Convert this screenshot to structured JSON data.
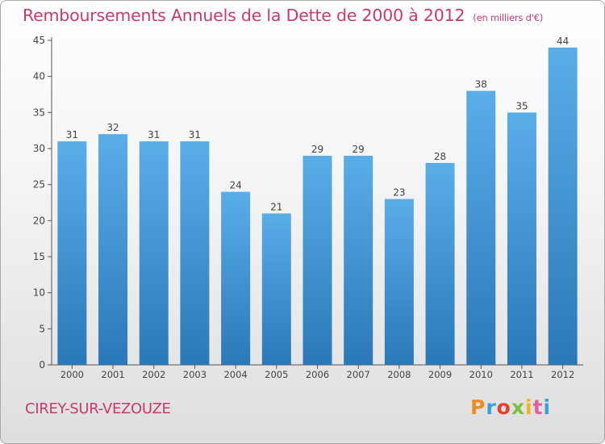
{
  "header": {
    "title": "Remboursements Annuels de la Dette de 2000 à 2012",
    "unit": "(en milliers d'€)"
  },
  "footer": {
    "commune": "CIREY-SUR-VEZOUZE",
    "brand": "Proxiti"
  },
  "colors": {
    "title": "#c83a6e",
    "bar_top": "#5aaee8",
    "bar_bottom": "#2a78b8"
  },
  "chart_data": {
    "type": "bar",
    "title": "Remboursements Annuels de la Dette de 2000 à 2012",
    "xlabel": "",
    "ylabel": "",
    "categories": [
      "2000",
      "2001",
      "2002",
      "2003",
      "2004",
      "2005",
      "2006",
      "2007",
      "2008",
      "2009",
      "2010",
      "2011",
      "2012"
    ],
    "values": [
      31,
      32,
      31,
      31,
      24,
      21,
      29,
      29,
      23,
      28,
      38,
      35,
      44
    ],
    "ylim": [
      0,
      45
    ],
    "yticks": [
      0,
      5,
      10,
      15,
      20,
      25,
      30,
      35,
      40,
      45
    ],
    "grid": false,
    "data_labels": true
  }
}
